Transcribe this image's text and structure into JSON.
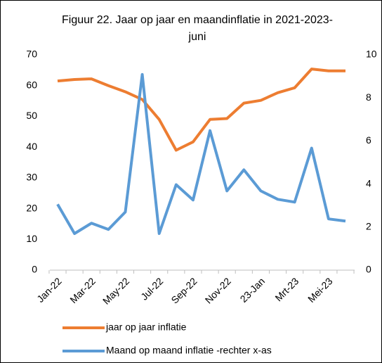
{
  "chart_data": {
    "type": "line",
    "title": "Figuur 22. Jaar op jaar en maandinflatie  in 2021-2023-juni",
    "categories": [
      "Jan-22",
      null,
      "Mar-22",
      null,
      "May-22",
      null,
      "Jul-22",
      null,
      "Sep-22",
      null,
      "Nov-22",
      null,
      "23-Jan",
      null,
      "Mrt-23",
      null,
      "Mei-23",
      null
    ],
    "series": [
      {
        "name": "jaar op jaar inflatie",
        "color": "#ed7d31",
        "values": [
          61.5,
          62,
          62.2,
          60,
          58,
          55.5,
          49,
          39,
          41.7,
          49,
          49.3,
          54.3,
          55.2,
          57.7,
          59.3,
          65.4,
          64.8,
          64.8
        ]
      },
      {
        "name": "Maand op maand inflatie -rechter x-as",
        "color": "#5b9bd5",
        "axis": "y2",
        "values": [
          3.06,
          1.7,
          2.18,
          1.89,
          2.7,
          9.09,
          1.7,
          3.97,
          3.26,
          6.48,
          3.68,
          4.66,
          3.68,
          3.29,
          3.16,
          5.67,
          2.38,
          2.28
        ]
      }
    ],
    "ylim": [
      0,
      70
    ],
    "yticks": [
      0,
      10,
      20,
      30,
      40,
      50,
      60,
      70
    ],
    "y2lim": [
      0,
      10
    ],
    "y2ticks": [
      0,
      2,
      4,
      6,
      8,
      10
    ],
    "grid": false,
    "legend": "bottom"
  }
}
